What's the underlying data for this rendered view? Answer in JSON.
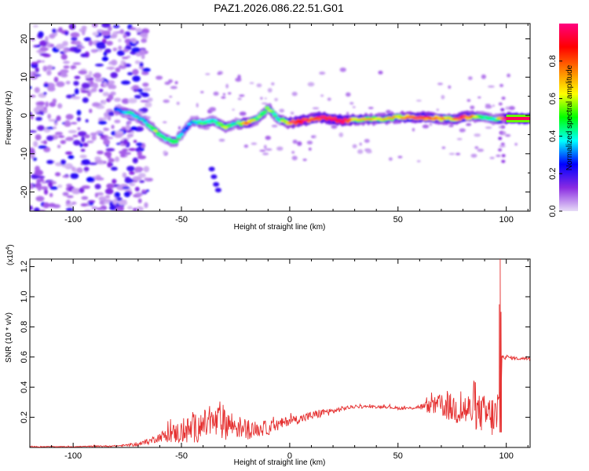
{
  "title": "PAZ1.2026.086.22.51.G01",
  "chart_data": [
    {
      "type": "heatmap",
      "xlabel": "Height of straight line (km)",
      "ylabel": "Frequency (Hz)",
      "xlim": [
        -120,
        111
      ],
      "ylim": [
        -25,
        24
      ],
      "xticks": [
        -100,
        -50,
        0,
        50,
        100
      ],
      "yticks": [
        -20,
        -10,
        0,
        10,
        20
      ],
      "colorbar": {
        "label": "Normalized spectral amplitude",
        "range": [
          0.0,
          1.0
        ],
        "ticks": [
          "0.0",
          "0.2",
          "0.4",
          "0.6",
          "0.8"
        ],
        "colormap": [
          "#e8ddf7",
          "#8a2be2",
          "#0000ff",
          "#00ffff",
          "#00ff00",
          "#ffff00",
          "#ff8000",
          "#ff0000",
          "#ff0080"
        ]
      },
      "ridge": {
        "x": [
          -80,
          -73,
          -67,
          -62,
          -58,
          -53,
          -48,
          -45,
          -40,
          -35,
          -30,
          -25,
          -20,
          -15,
          -10,
          -5,
          0,
          5,
          10,
          15,
          20,
          25,
          30,
          40,
          50,
          60,
          70,
          75,
          80,
          85,
          90,
          95,
          100,
          105,
          111
        ],
        "frequency": [
          1.5,
          0.5,
          -1.5,
          -4,
          -6,
          -7,
          -3.5,
          -1.5,
          -2,
          -1.5,
          -3,
          -2,
          -2,
          -1,
          2,
          -1,
          -2,
          -1.5,
          -1,
          -0.5,
          -1,
          -1.5,
          -1,
          -1,
          -0.5,
          -0.5,
          -0.8,
          -1,
          -0.5,
          -0.2,
          -0.5,
          -1,
          -0.8,
          -0.8,
          -0.8
        ],
        "amplitude": [
          0.25,
          0.35,
          0.3,
          0.45,
          0.35,
          0.45,
          0.25,
          0.3,
          0.4,
          0.35,
          0.5,
          0.3,
          0.7,
          0.4,
          0.45,
          0.35,
          0.65,
          0.85,
          0.7,
          0.8,
          0.8,
          0.85,
          0.55,
          0.5,
          0.55,
          0.75,
          0.6,
          0.55,
          0.8,
          0.5,
          0.4,
          0.35,
          0.9,
          0.95,
          0.95
        ]
      }
    },
    {
      "type": "line",
      "xlabel": "Height of straight line (km)",
      "ylabel": "SNR (10 * v/v)",
      "yscale_label": "(x10",
      "yscale_exp": "4",
      "xlim": [
        -120,
        111
      ],
      "ylim": [
        0,
        1.25
      ],
      "xticks": [
        -100,
        -50,
        0,
        50,
        100
      ],
      "yticks": [
        "0.2",
        "0.4",
        "0.6",
        "0.8",
        "1.0",
        "1.2"
      ],
      "series": [
        {
          "color": "#e53030",
          "x": [
            -120,
            -100,
            -80,
            -70,
            -65,
            -60,
            -55,
            -50,
            -45,
            -40,
            -35,
            -30,
            -25,
            -20,
            -15,
            -10,
            -5,
            0,
            5,
            10,
            15,
            20,
            25,
            30,
            35,
            40,
            45,
            50,
            55,
            60,
            65,
            70,
            75,
            80,
            85,
            90,
            95,
            97,
            98,
            100,
            105,
            111
          ],
          "y": [
            0.005,
            0.005,
            0.01,
            0.02,
            0.04,
            0.07,
            0.09,
            0.1,
            0.12,
            0.15,
            0.16,
            0.17,
            0.14,
            0.12,
            0.12,
            0.13,
            0.15,
            0.18,
            0.19,
            0.21,
            0.23,
            0.24,
            0.26,
            0.27,
            0.27,
            0.27,
            0.27,
            0.26,
            0.26,
            0.27,
            0.27,
            0.28,
            0.26,
            0.25,
            0.24,
            0.22,
            0.2,
            0.2,
            0.6,
            0.6,
            0.59,
            0.59
          ],
          "noise": [
            0.003,
            0.003,
            0.005,
            0.01,
            0.02,
            0.03,
            0.06,
            0.08,
            0.1,
            0.1,
            0.11,
            0.12,
            0.08,
            0.07,
            0.05,
            0.05,
            0.04,
            0.03,
            0.03,
            0.03,
            0.03,
            0.02,
            0.015,
            0.01,
            0.01,
            0.01,
            0.01,
            0.01,
            0.01,
            0.015,
            0.05,
            0.08,
            0.1,
            0.12,
            0.12,
            0.13,
            0.15,
            0.3,
            0.02,
            0.015,
            0.01,
            0.01
          ],
          "spikes": [
            {
              "x": 97.2,
              "y": 1.25
            },
            {
              "x": 96.8,
              "y": 0.95
            },
            {
              "x": 97.6,
              "y": 0.9
            }
          ]
        }
      ]
    }
  ]
}
